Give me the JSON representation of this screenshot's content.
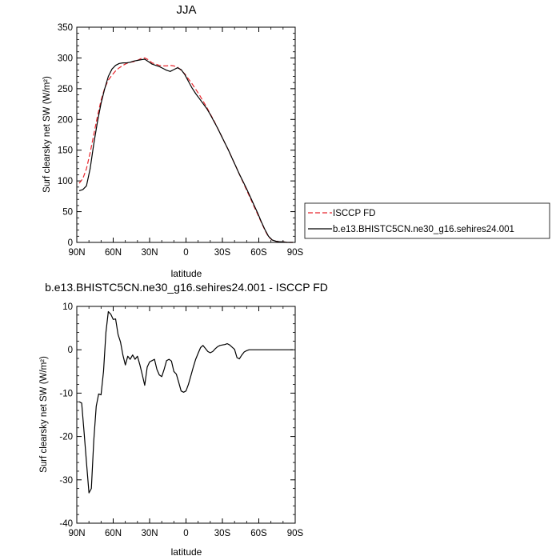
{
  "chart_data": [
    {
      "type": "line",
      "title": "JJA",
      "xlabel": "latitude",
      "ylabel": "Surf clearsky net SW (W/m²)",
      "x_ticks": [
        {
          "value": 90,
          "label": "90N"
        },
        {
          "value": 60,
          "label": "60N"
        },
        {
          "value": 30,
          "label": "30N"
        },
        {
          "value": 0,
          "label": "0"
        },
        {
          "value": -30,
          "label": "30S"
        },
        {
          "value": -60,
          "label": "60S"
        },
        {
          "value": -90,
          "label": "90S"
        }
      ],
      "y_ticks": [
        0,
        50,
        100,
        150,
        200,
        250,
        300,
        350
      ],
      "xlim": [
        90,
        -90
      ],
      "ylim": [
        0,
        350
      ],
      "legend_position": "right",
      "series": [
        {
          "name": "ISCCP FD",
          "color": "#e8262d",
          "dash": "dashed",
          "x": [
            88,
            85,
            82,
            79,
            76,
            73,
            70,
            67,
            64,
            61,
            58,
            55,
            52,
            49,
            46,
            43,
            40,
            37,
            34,
            31,
            28,
            25,
            22,
            19,
            16,
            13,
            10,
            7,
            4,
            1,
            -2,
            -5,
            -8,
            -11,
            -14,
            -17,
            -20,
            -23,
            -26,
            -29,
            -32,
            -35,
            -38,
            -41,
            -44,
            -47,
            -50,
            -53,
            -56,
            -59,
            -62,
            -65,
            -68,
            -71,
            -74,
            -77,
            -80,
            -83,
            -86,
            -88
          ],
          "y": [
            96,
            104,
            120,
            146,
            175,
            205,
            231,
            251,
            264,
            272,
            279,
            284,
            288,
            291,
            293,
            294,
            296,
            299,
            300,
            297,
            292,
            290,
            288,
            287,
            287,
            288,
            287,
            285,
            280,
            274,
            266,
            258,
            249,
            240,
            230,
            220,
            209,
            198,
            186,
            174,
            162,
            150,
            137,
            124,
            111,
            98,
            85,
            72,
            59,
            46,
            33,
            20,
            9,
            4,
            2,
            1,
            1,
            0,
            0,
            0
          ]
        },
        {
          "name": "b.e13.BHISTC5CN.ne30_g16.sehires24.001",
          "color": "#000000",
          "dash": "solid",
          "x": [
            88,
            85,
            82,
            79,
            76,
            73,
            70,
            67,
            64,
            61,
            58,
            55,
            52,
            49,
            46,
            43,
            40,
            37,
            34,
            31,
            28,
            25,
            22,
            19,
            16,
            13,
            10,
            7,
            4,
            1,
            -2,
            -5,
            -8,
            -11,
            -14,
            -17,
            -20,
            -23,
            -26,
            -29,
            -32,
            -35,
            -38,
            -41,
            -44,
            -47,
            -50,
            -53,
            -56,
            -59,
            -62,
            -65,
            -68,
            -71,
            -74,
            -77,
            -80,
            -83,
            -86,
            -88
          ],
          "y": [
            84,
            86,
            92,
            120,
            160,
            196,
            226,
            250,
            270,
            282,
            288,
            291,
            292,
            292,
            293,
            295,
            296,
            297,
            298,
            294,
            290,
            288,
            286,
            283,
            280,
            278,
            281,
            284,
            281,
            273,
            262,
            251,
            242,
            234,
            226,
            218,
            208,
            197,
            186,
            174,
            162,
            150,
            137,
            124,
            111,
            99,
            87,
            74,
            61,
            48,
            34,
            21,
            10,
            4,
            2,
            1,
            1,
            0,
            0,
            0
          ]
        }
      ]
    },
    {
      "type": "line",
      "title": "b.e13.BHISTC5CN.ne30_g16.sehires24.001 - ISCCP FD",
      "xlabel": "latitude",
      "ylabel": "Surf clearsky net SW (W/m²)",
      "x_ticks": [
        {
          "value": 90,
          "label": "90N"
        },
        {
          "value": 60,
          "label": "60N"
        },
        {
          "value": 30,
          "label": "30N"
        },
        {
          "value": 0,
          "label": "0"
        },
        {
          "value": -30,
          "label": "30S"
        },
        {
          "value": -60,
          "label": "60S"
        },
        {
          "value": -90,
          "label": "90S"
        }
      ],
      "y_ticks": [
        -40,
        -30,
        -20,
        -10,
        0,
        10
      ],
      "xlim": [
        90,
        -90
      ],
      "ylim": [
        -40,
        10
      ],
      "series": [
        {
          "color": "#000000",
          "dash": "solid",
          "x": [
            88,
            86,
            84,
            82,
            80,
            78,
            76,
            74,
            72,
            70,
            68,
            66,
            64,
            62,
            60,
            58,
            56,
            54,
            52,
            50,
            48,
            46,
            44,
            42,
            40,
            38,
            36,
            34,
            32,
            30,
            28,
            26,
            24,
            22,
            20,
            18,
            16,
            14,
            12,
            10,
            8,
            6,
            4,
            2,
            0,
            -2,
            -4,
            -6,
            -8,
            -10,
            -12,
            -14,
            -16,
            -18,
            -20,
            -22,
            -24,
            -26,
            -28,
            -30,
            -32,
            -34,
            -36,
            -38,
            -40,
            -42,
            -44,
            -46,
            -48,
            -50,
            -52,
            -54,
            -56,
            -58,
            -60,
            -62,
            -64,
            -66,
            -68,
            -70,
            -72,
            -74,
            -76,
            -78,
            -80,
            -82,
            -84,
            -86,
            -88
          ],
          "y": [
            -12,
            -12.3,
            -19,
            -26,
            -33,
            -32,
            -21,
            -13,
            -10.2,
            -10.4,
            -5,
            4,
            8.8,
            8.2,
            7,
            7.1,
            3.5,
            1.8,
            -1.2,
            -3.5,
            -1.5,
            -2.2,
            -1.2,
            -2.2,
            -1.5,
            -3.5,
            -5.8,
            -8.2,
            -4,
            -2.8,
            -2.5,
            -2.2,
            -4.5,
            -5.8,
            -6.2,
            -4.5,
            -2.5,
            -2.2,
            -2.6,
            -5,
            -5.6,
            -7.5,
            -9.5,
            -9.8,
            -9.5,
            -8,
            -6,
            -4,
            -2.2,
            -0.8,
            0.5,
            1,
            0.3,
            -0.4,
            -0.7,
            -0.4,
            0.2,
            0.7,
            1,
            1.1,
            1.2,
            1.4,
            1.1,
            0.6,
            0.1,
            -1.8,
            -2.1,
            -1.2,
            -0.5,
            -0.2,
            0,
            0,
            0,
            0,
            0,
            0,
            0,
            0,
            0,
            0,
            0,
            0,
            0,
            0,
            0,
            0,
            0,
            0,
            0
          ]
        }
      ]
    }
  ]
}
